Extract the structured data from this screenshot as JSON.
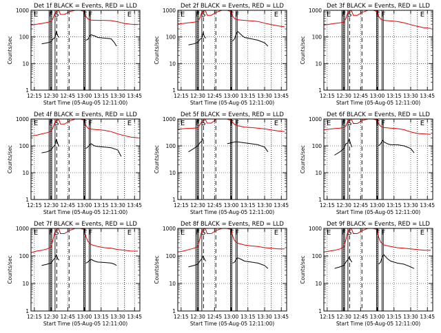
{
  "chart_data": {
    "type": "line",
    "layout": "3x3 grid",
    "scale": "log-y",
    "ylim": [
      1,
      1000
    ],
    "yticks": [
      1,
      10,
      100,
      1000
    ],
    "ylabel": "Counts/sec",
    "xlabel": "Start Time (05-Aug-05 12:11:00)",
    "xlim_minutes": [
      12.2,
      13.83
    ],
    "xticks": [
      "12:15",
      "12:30",
      "12:45",
      "13:00",
      "13:15",
      "13:30",
      "13:45"
    ],
    "xtick_values": [
      12.25,
      12.5,
      12.75,
      13.0,
      13.25,
      13.5,
      13.75
    ],
    "grid": "dotted",
    "series_colors": {
      "events": "#000000",
      "lld": "#e00000"
    },
    "panels": [
      {
        "title": "Det 1f BLACK = Events, RED = LLD",
        "lld_x": [
          12.2,
          12.28,
          12.36,
          12.44,
          12.5,
          12.53,
          12.56,
          12.6,
          12.62,
          12.64,
          12.7,
          12.78,
          12.86,
          12.94,
          13.0,
          13.02,
          13.05,
          13.1,
          13.2,
          13.3,
          13.4,
          13.5,
          13.6,
          13.7,
          13.8
        ],
        "lld_y": [
          280,
          300,
          320,
          350,
          380,
          500,
          800,
          1000,
          950,
          700,
          700,
          900,
          1000,
          1000,
          900,
          600,
          480,
          430,
          420,
          420,
          410,
          370,
          320,
          300,
          290
        ],
        "ev_x": [
          12.36,
          12.44,
          12.5,
          12.53,
          12.56,
          12.58,
          12.6,
          12.62,
          12.63,
          13.02,
          13.05,
          13.08,
          13.1,
          13.15,
          13.2,
          13.3,
          13.4,
          13.45,
          13.48
        ],
        "ev_y": [
          55,
          60,
          65,
          85,
          95,
          160,
          110,
          95,
          null,
          75,
          80,
          110,
          120,
          110,
          95,
          90,
          85,
          60,
          45
        ]
      },
      {
        "title": "Det 2f BLACK = Events, RED = LLD",
        "lld_x": [
          12.2,
          12.28,
          12.36,
          12.44,
          12.5,
          12.53,
          12.56,
          12.6,
          12.62,
          12.64,
          12.7,
          12.78,
          12.86,
          12.94,
          13.0,
          13.02,
          13.05,
          13.1,
          13.2,
          13.3,
          13.4,
          13.5,
          13.6,
          13.7,
          13.8
        ],
        "lld_y": [
          310,
          320,
          340,
          360,
          380,
          520,
          850,
          1000,
          900,
          650,
          650,
          850,
          1000,
          1000,
          900,
          620,
          490,
          440,
          420,
          400,
          380,
          330,
          290,
          260,
          240
        ],
        "ev_x": [
          12.36,
          12.44,
          12.5,
          12.53,
          12.56,
          12.58,
          12.6,
          12.62,
          12.63,
          13.02,
          13.05,
          13.08,
          13.1,
          13.15,
          13.2,
          13.3,
          13.4,
          13.5,
          13.55
        ],
        "ev_y": [
          50,
          55,
          62,
          80,
          90,
          140,
          100,
          90,
          null,
          70,
          85,
          140,
          160,
          120,
          95,
          85,
          75,
          60,
          45
        ]
      },
      {
        "title": "Det 3f BLACK = Events, RED = LLD",
        "lld_x": [
          12.2,
          12.28,
          12.36,
          12.44,
          12.5,
          12.53,
          12.56,
          12.6,
          12.62,
          12.64,
          12.7,
          12.78,
          12.86,
          12.94,
          13.0,
          13.02,
          13.05,
          13.1,
          13.2,
          13.3,
          13.4,
          13.5,
          13.6,
          13.7,
          13.8
        ],
        "lld_y": [
          280,
          300,
          320,
          340,
          360,
          500,
          820,
          1000,
          900,
          650,
          650,
          850,
          1000,
          1000,
          900,
          600,
          470,
          420,
          400,
          380,
          340,
          290,
          250,
          220,
          210
        ],
        "ev_x": [],
        "ev_y": []
      },
      {
        "title": "Det 4f BLACK = Events, RED = LLD",
        "lld_x": [
          12.2,
          12.28,
          12.36,
          12.44,
          12.5,
          12.53,
          12.56,
          12.6,
          12.62,
          12.64,
          12.7,
          12.78,
          12.86,
          12.94,
          13.0,
          13.02,
          13.05,
          13.1,
          13.2,
          13.3,
          13.4,
          13.5,
          13.6,
          13.7,
          13.8
        ],
        "lld_y": [
          230,
          250,
          280,
          310,
          350,
          480,
          780,
          1000,
          900,
          650,
          650,
          850,
          1000,
          1000,
          900,
          580,
          460,
          420,
          400,
          380,
          340,
          280,
          240,
          210,
          200
        ],
        "ev_x": [
          12.36,
          12.44,
          12.5,
          12.53,
          12.56,
          12.58,
          12.6,
          12.62,
          12.63,
          13.02,
          13.05,
          13.08,
          13.1,
          13.15,
          13.2,
          13.3,
          13.4,
          13.5,
          13.55
        ],
        "ev_y": [
          55,
          60,
          70,
          90,
          110,
          180,
          120,
          95,
          null,
          80,
          90,
          110,
          120,
          100,
          95,
          90,
          85,
          70,
          40
        ]
      },
      {
        "title": "Det 5f BLACK = Events, RED = LLD",
        "lld_x": [
          12.2,
          12.3,
          12.4,
          12.5,
          12.56,
          12.6,
          12.62,
          12.64,
          12.7,
          12.78,
          12.86,
          12.94,
          13.0,
          13.05,
          13.1,
          13.2,
          13.3,
          13.4,
          13.5,
          13.6,
          13.7,
          13.8
        ],
        "lld_y": [
          420,
          440,
          450,
          470,
          800,
          1000,
          900,
          700,
          700,
          1000,
          1000,
          1000,
          880,
          620,
          560,
          500,
          480,
          460,
          430,
          390,
          360,
          340
        ],
        "ev_x": [
          12.36,
          12.44,
          12.5,
          12.53,
          12.56,
          12.58,
          12.6,
          12.94,
          13.0,
          13.05,
          13.1,
          13.2,
          13.3,
          13.4,
          13.5,
          13.55
        ],
        "ev_y": [
          60,
          80,
          100,
          130,
          150,
          190,
          null,
          120,
          130,
          140,
          140,
          130,
          120,
          110,
          90,
          60
        ]
      },
      {
        "title": "Det 6f BLACK = Events, RED = LLD",
        "lld_x": [
          12.2,
          12.28,
          12.36,
          12.44,
          12.5,
          12.53,
          12.56,
          12.6,
          12.62,
          12.64,
          12.7,
          12.78,
          12.86,
          12.94,
          13.0,
          13.02,
          13.05,
          13.1,
          13.2,
          13.3,
          13.4,
          13.5,
          13.6,
          13.7,
          13.8
        ],
        "lld_y": [
          400,
          420,
          440,
          460,
          480,
          560,
          850,
          1000,
          900,
          680,
          680,
          900,
          1000,
          1000,
          900,
          660,
          540,
          480,
          460,
          440,
          400,
          330,
          290,
          280,
          270
        ],
        "ev_x": [
          12.36,
          12.44,
          12.5,
          12.53,
          12.56,
          12.58,
          12.6,
          12.62,
          12.63,
          13.02,
          13.05,
          13.08,
          13.1,
          13.15,
          13.2,
          13.3,
          13.4,
          13.5,
          13.55
        ],
        "ev_y": [
          45,
          60,
          80,
          120,
          130,
          180,
          120,
          90,
          null,
          100,
          120,
          160,
          140,
          120,
          110,
          110,
          100,
          80,
          55
        ]
      },
      {
        "title": "Det 7f BLACK = Events, RED = LLD",
        "lld_x": [
          12.2,
          12.28,
          12.36,
          12.44,
          12.5,
          12.53,
          12.56,
          12.6,
          12.62,
          12.64,
          12.7,
          12.78,
          12.86,
          12.94,
          13.0,
          13.02,
          13.05,
          13.1,
          13.2,
          13.3,
          13.4,
          13.5,
          13.6,
          13.7,
          13.8
        ],
        "lld_y": [
          130,
          150,
          160,
          180,
          210,
          400,
          800,
          1000,
          900,
          650,
          650,
          850,
          1000,
          1000,
          900,
          520,
          340,
          260,
          220,
          200,
          190,
          170,
          160,
          150,
          150
        ],
        "ev_x": [
          12.36,
          12.44,
          12.5,
          12.53,
          12.56,
          12.58,
          12.6,
          12.62,
          12.63,
          13.02,
          13.05,
          13.08,
          13.1,
          13.15,
          13.2,
          13.3,
          13.4,
          13.45,
          13.48
        ],
        "ev_y": [
          45,
          50,
          55,
          70,
          85,
          110,
          80,
          70,
          null,
          55,
          60,
          70,
          75,
          65,
          60,
          58,
          55,
          50,
          45
        ]
      },
      {
        "title": "Det 8f BLACK = Events, RED = LLD",
        "lld_x": [
          12.2,
          12.28,
          12.36,
          12.44,
          12.5,
          12.53,
          12.56,
          12.6,
          12.62,
          12.64,
          12.7,
          12.78,
          12.86,
          12.94,
          13.0,
          13.02,
          13.05,
          13.1,
          13.2,
          13.3,
          13.4,
          13.5,
          13.6,
          13.7,
          13.8
        ],
        "lld_y": [
          140,
          150,
          170,
          190,
          220,
          420,
          820,
          1000,
          900,
          650,
          650,
          850,
          1000,
          1000,
          900,
          540,
          360,
          290,
          250,
          230,
          220,
          200,
          190,
          180,
          180
        ],
        "ev_x": [
          12.36,
          12.44,
          12.5,
          12.53,
          12.56,
          12.58,
          12.6,
          12.62,
          12.63,
          13.02,
          13.05,
          13.08,
          13.1,
          13.15,
          13.2,
          13.3,
          13.4,
          13.5,
          13.55
        ],
        "ev_y": [
          40,
          45,
          50,
          65,
          80,
          100,
          75,
          65,
          null,
          55,
          60,
          80,
          85,
          75,
          65,
          60,
          55,
          45,
          35
        ]
      },
      {
        "title": "Det 9f BLACK = Events, RED = LLD",
        "lld_x": [
          12.2,
          12.28,
          12.36,
          12.44,
          12.5,
          12.53,
          12.56,
          12.6,
          12.62,
          12.64,
          12.7,
          12.78,
          12.86,
          12.94,
          13.0,
          13.02,
          13.05,
          13.1,
          13.2,
          13.3,
          13.4,
          13.5,
          13.6,
          13.7,
          13.8
        ],
        "lld_y": [
          140,
          150,
          160,
          180,
          210,
          400,
          780,
          1000,
          900,
          650,
          650,
          850,
          1000,
          1000,
          900,
          480,
          320,
          250,
          220,
          200,
          190,
          180,
          170,
          160,
          160
        ],
        "ev_x": [
          12.36,
          12.44,
          12.5,
          12.53,
          12.56,
          12.58,
          12.6,
          12.62,
          12.63,
          13.02,
          13.05,
          13.08,
          13.1,
          13.15,
          13.2,
          13.3,
          13.4,
          13.5,
          13.55
        ],
        "ev_y": [
          35,
          40,
          45,
          60,
          75,
          90,
          70,
          60,
          null,
          50,
          60,
          100,
          110,
          80,
          65,
          55,
          50,
          40,
          35
        ]
      }
    ],
    "flags": [
      {
        "label": "E",
        "x": 12.2,
        "style": "solid"
      },
      {
        "label": "E",
        "x": 13.6,
        "style": "solid"
      }
    ],
    "flag_lines": [
      {
        "x": 12.2,
        "style": "solid"
      },
      {
        "x": 12.47,
        "style": "solid"
      },
      {
        "x": 12.49,
        "style": "solid"
      },
      {
        "x": 12.51,
        "style": "solid"
      },
      {
        "x": 12.56,
        "style": "solid"
      },
      {
        "x": 12.585,
        "style": "dashed"
      },
      {
        "x": 12.77,
        "style": "dashed"
      },
      {
        "x": 12.99,
        "style": "solid"
      },
      {
        "x": 13.01,
        "style": "solid"
      },
      {
        "x": 13.07,
        "style": "solid"
      },
      {
        "x": 13.09,
        "style": "solid"
      },
      {
        "x": 13.6,
        "style": "dotted"
      }
    ],
    "flag_labels": [
      {
        "label": "F",
        "x": 12.49
      },
      {
        "label": "S",
        "x": 12.575
      },
      {
        "label": "F",
        "x": 13.0
      },
      {
        "label": "F",
        "x": 13.08
      }
    ]
  }
}
